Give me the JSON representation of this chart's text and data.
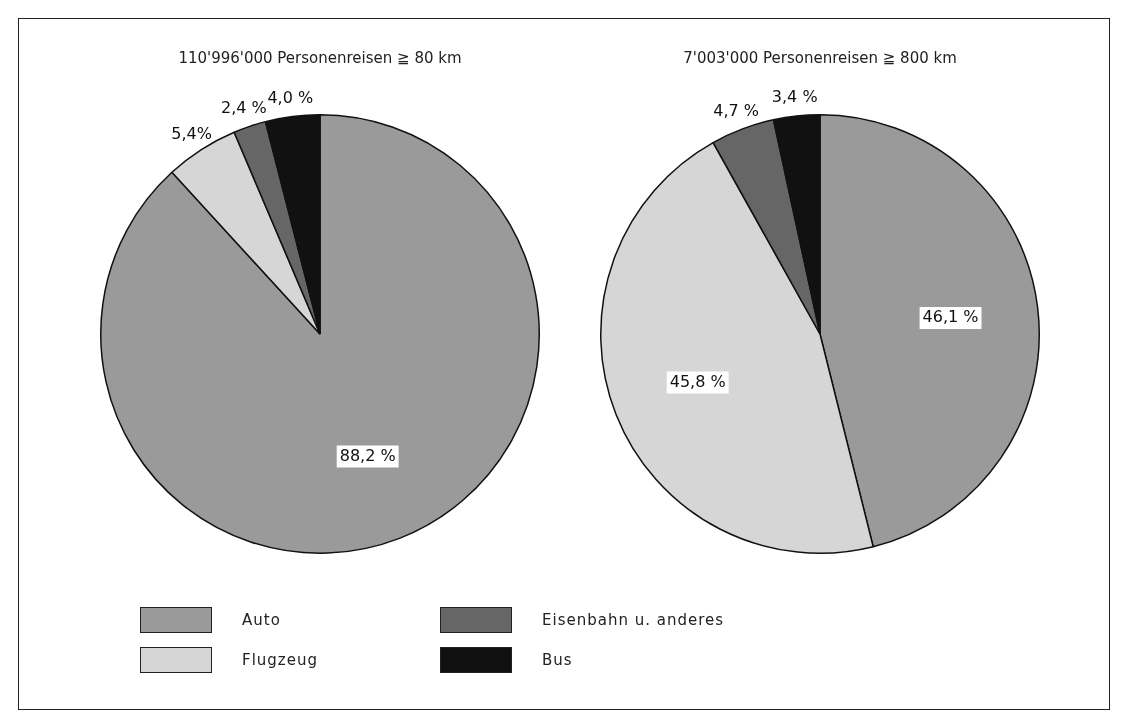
{
  "chart_data": [
    {
      "type": "pie",
      "title": "110'996'000 Personenreisen ≧ 80 km",
      "categories": [
        "Auto",
        "Flugzeug",
        "Eisenbahn u. anderes",
        "Bus"
      ],
      "values": [
        88.2,
        5.4,
        2.4,
        4.0
      ],
      "colors": [
        "#9a9a9a",
        "#d6d6d6",
        "#666666",
        "#111111"
      ],
      "value_labels": [
        "88,2 %",
        "5,4%",
        "2,4 %",
        "4,0 %"
      ],
      "legend": "bottom"
    },
    {
      "type": "pie",
      "title": "7'003'000 Personenreisen ≧ 800 km",
      "categories": [
        null,
        null,
        null,
        null
      ],
      "values": [
        46.1,
        45.8,
        4.7,
        3.4
      ],
      "colors": [
        "#9a9a9a",
        "#d6d6d6",
        "#666666",
        "#111111"
      ],
      "value_labels": [
        "46,1 %",
        "45,8 %",
        "4,7 %",
        "3,4 %"
      ],
      "legend": false
    }
  ]
}
